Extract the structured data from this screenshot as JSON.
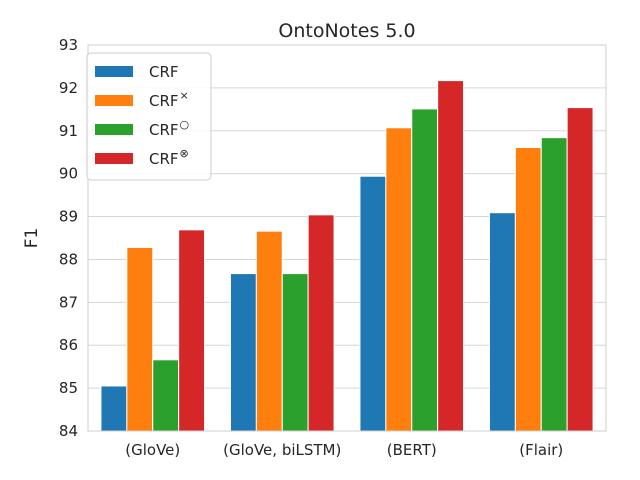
{
  "chart_data": {
    "type": "bar",
    "title": "OntoNotes 5.0",
    "xlabel": "",
    "ylabel": "F1",
    "ylim": [
      84,
      93
    ],
    "yticks": [
      84,
      85,
      86,
      87,
      88,
      89,
      90,
      91,
      92,
      93
    ],
    "grid": true,
    "legend_position": "top-left",
    "categories": [
      "(GloVe)",
      "(GloVe, biLSTM)",
      "(BERT)",
      "(Flair)"
    ],
    "series": [
      {
        "name": "CRF",
        "superscript": "",
        "color": "#1f77b4",
        "values": [
          85.05,
          87.67,
          89.94,
          89.09
        ]
      },
      {
        "name": "CRF",
        "superscript": "×",
        "color": "#ff7f0e",
        "values": [
          88.28,
          88.66,
          91.07,
          90.61
        ]
      },
      {
        "name": "CRF",
        "superscript": "○",
        "color": "#2ca02c",
        "values": [
          85.66,
          87.67,
          91.51,
          90.84
        ]
      },
      {
        "name": "CRF",
        "superscript": "⊗",
        "color": "#d62728",
        "values": [
          88.69,
          89.04,
          92.17,
          91.54
        ]
      }
    ]
  }
}
